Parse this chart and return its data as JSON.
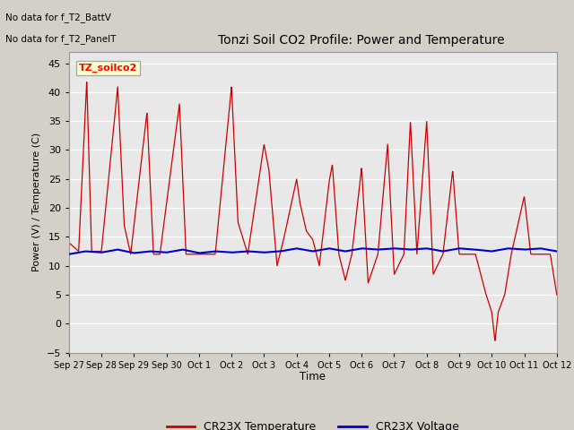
{
  "title": "Tonzi Soil CO2 Profile: Power and Temperature",
  "ylabel": "Power (V) / Temperature (C)",
  "xlabel": "Time",
  "ylim": [
    -5,
    47
  ],
  "yticks": [
    -5,
    0,
    5,
    10,
    15,
    20,
    25,
    30,
    35,
    40,
    45
  ],
  "note_line1": "No data for f_T2_BattV",
  "note_line2": "No data for f_T2_PanelT",
  "legend_label": "TZ_soilco2",
  "legend_bg": "#ffffcc",
  "legend_border": "#aaaaaa",
  "line1_label": "CR23X Temperature",
  "line1_color": "#cc0000",
  "line2_label": "CR23X Voltage",
  "line2_color": "#0000cc",
  "xtick_labels": [
    "Sep 27",
    "Sep 28",
    "Sep 29",
    "Sep 30",
    "Oct 1",
    "Oct 2",
    "Oct 3",
    "Oct 4",
    "Oct 5",
    "Oct 6",
    "Oct 7",
    "Oct 8",
    "Oct 9",
    "Oct 10",
    "Oct 11",
    "Oct 12"
  ],
  "xtick_positions": [
    0,
    1,
    2,
    3,
    4,
    5,
    6,
    7,
    8,
    9,
    10,
    11,
    12,
    13,
    14,
    15
  ],
  "figsize": [
    6.4,
    4.8
  ],
  "dpi": 100
}
